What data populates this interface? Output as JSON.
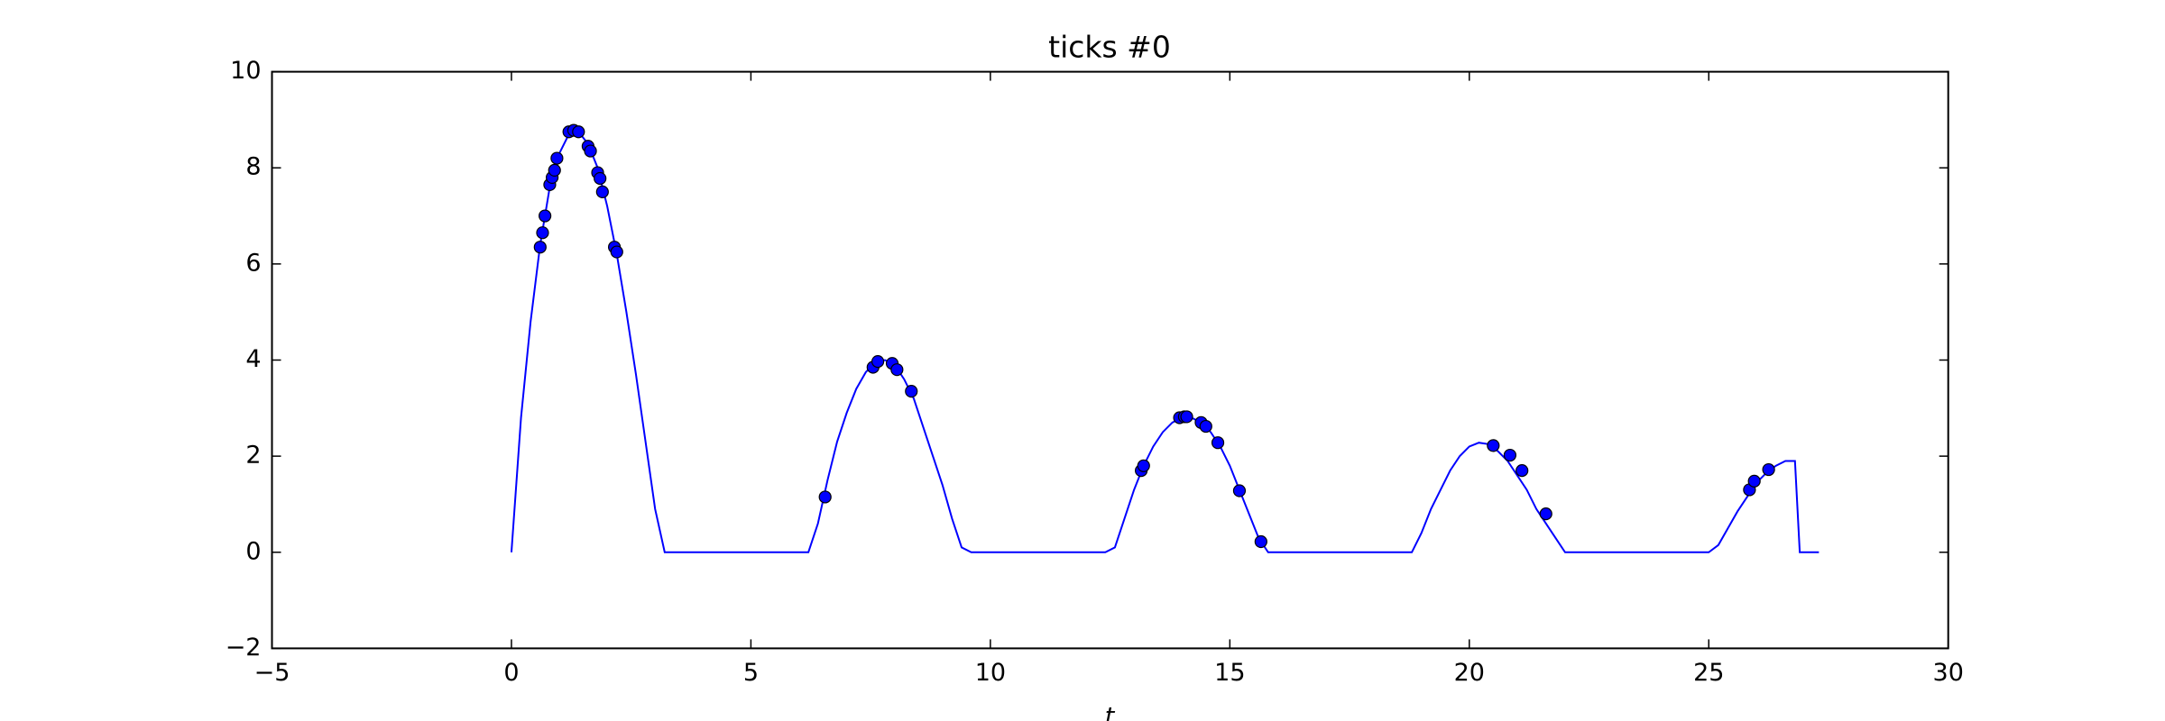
{
  "chart_data": {
    "type": "line",
    "title": "ticks #0",
    "x_label": "t",
    "xlim": [
      -5,
      30
    ],
    "ylim": [
      -2,
      10
    ],
    "xticks": [
      {
        "value": -5,
        "label": "−5"
      },
      0,
      5,
      10,
      15,
      20,
      25,
      30
    ],
    "yticks": [
      {
        "value": -2,
        "label": "−2"
      },
      0,
      2,
      4,
      6,
      8,
      10
    ],
    "grid": false,
    "series": [
      {
        "kind": "line",
        "color": "#0000ff",
        "x": [
          0,
          0.2,
          0.4,
          0.6,
          0.8,
          1.0,
          1.2,
          1.4,
          1.6,
          1.8,
          2.0,
          2.2,
          2.4,
          2.6,
          2.8,
          3.0,
          3.2,
          6.2,
          6.4,
          6.6,
          6.8,
          7.0,
          7.2,
          7.4,
          7.6,
          7.8,
          8.0,
          8.2,
          8.4,
          8.6,
          8.8,
          9.0,
          9.2,
          9.4,
          9.6,
          12.4,
          12.6,
          12.8,
          13.0,
          13.2,
          13.4,
          13.6,
          13.8,
          14.0,
          14.2,
          14.4,
          14.6,
          14.8,
          15.0,
          15.2,
          15.4,
          15.6,
          15.8,
          18.8,
          19.0,
          19.2,
          19.4,
          19.6,
          19.8,
          20.0,
          20.2,
          20.4,
          20.6,
          20.8,
          21.0,
          21.2,
          21.4,
          21.6,
          21.8,
          22.0,
          25.0,
          25.2,
          25.4,
          25.6,
          25.8,
          26.0,
          26.2,
          26.4,
          26.6,
          26.8,
          26.9,
          27.3
        ],
        "values": [
          0,
          2.8,
          4.8,
          6.4,
          7.6,
          8.3,
          8.7,
          8.75,
          8.5,
          8.0,
          7.2,
          6.2,
          5.0,
          3.7,
          2.3,
          0.9,
          0,
          0,
          0.6,
          1.5,
          2.3,
          2.9,
          3.4,
          3.75,
          3.95,
          4.0,
          3.9,
          3.6,
          3.2,
          2.6,
          2.0,
          1.4,
          0.7,
          0.1,
          0,
          0,
          0.1,
          0.7,
          1.3,
          1.8,
          2.2,
          2.5,
          2.7,
          2.8,
          2.8,
          2.7,
          2.5,
          2.2,
          1.8,
          1.3,
          0.8,
          0.3,
          0,
          0,
          0.4,
          0.9,
          1.3,
          1.7,
          2.0,
          2.2,
          2.28,
          2.25,
          2.1,
          1.9,
          1.6,
          1.3,
          0.9,
          0.6,
          0.3,
          0,
          0,
          0.15,
          0.5,
          0.85,
          1.15,
          1.45,
          1.65,
          1.8,
          1.9,
          1.9,
          0,
          0
        ]
      },
      {
        "kind": "scatter",
        "color": "#0000ff",
        "x": [
          0.6,
          0.65,
          0.7,
          0.8,
          0.85,
          0.9,
          0.95,
          1.2,
          1.3,
          1.4,
          1.6,
          1.65,
          1.8,
          1.85,
          1.9,
          2.15,
          2.2,
          6.55,
          7.55,
          7.65,
          7.95,
          8.05,
          8.35,
          13.15,
          13.2,
          13.95,
          14.05,
          14.1,
          14.4,
          14.5,
          14.75,
          15.2,
          15.65,
          20.5,
          20.85,
          21.1,
          21.6,
          25.85,
          25.95,
          26.25
        ],
        "values": [
          6.35,
          6.65,
          7.0,
          7.65,
          7.8,
          7.95,
          8.2,
          8.75,
          8.78,
          8.75,
          8.45,
          8.35,
          7.9,
          7.78,
          7.5,
          6.35,
          6.25,
          1.15,
          3.85,
          3.97,
          3.93,
          3.8,
          3.35,
          1.7,
          1.8,
          2.8,
          2.82,
          2.82,
          2.7,
          2.62,
          2.28,
          1.28,
          0.22,
          2.22,
          2.02,
          1.7,
          0.8,
          1.3,
          1.48,
          1.72
        ]
      }
    ]
  }
}
